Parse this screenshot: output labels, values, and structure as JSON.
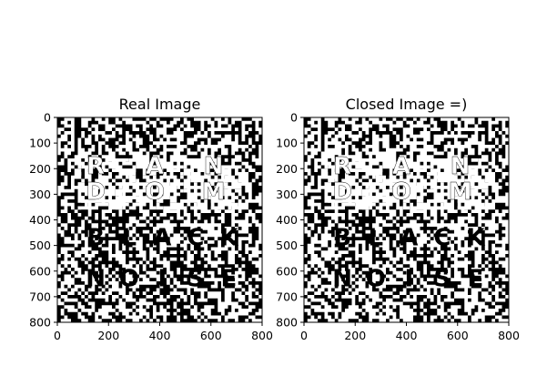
{
  "figure": {
    "background": "#ffffff"
  },
  "chart_data": [
    {
      "type": "heatmap",
      "title": "Real Image",
      "colormap": "binary (black / white)",
      "xlim": [
        0,
        800
      ],
      "ylim": [
        800,
        0
      ],
      "xticks": [
        0,
        200,
        400,
        600,
        800
      ],
      "yticks": [
        0,
        100,
        200,
        300,
        400,
        500,
        600,
        700,
        800
      ],
      "grid": false,
      "content": "noisy black-and-white pattern with large text RAN DOM (white) and BLACK NOISE (black)"
    },
    {
      "type": "heatmap",
      "title": "Closed Image =)",
      "colormap": "binary (black / white)",
      "xlim": [
        0,
        800
      ],
      "ylim": [
        800,
        0
      ],
      "xticks": [
        0,
        200,
        400,
        600,
        800
      ],
      "yticks": [
        0,
        100,
        200,
        300,
        400,
        500,
        600,
        700,
        800
      ],
      "grid": false,
      "content": "morphologically closed version of the noisy pattern with text RAN DOM and BLACK NOISE"
    }
  ]
}
